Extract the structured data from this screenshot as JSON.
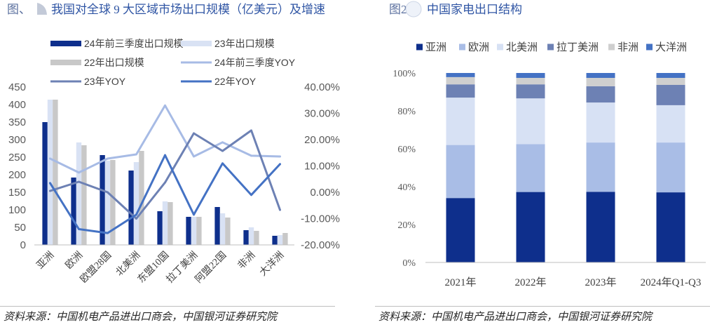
{
  "panels": {
    "left": {
      "figure_label": "图、",
      "source": "资料来源：中国机电产品进出口商会，中国银河证券研究院"
    },
    "right": {
      "figure_label": "图2",
      "source": "资料来源：中国机电产品进出口商会，中国银河证券研究院"
    }
  },
  "icons": {
    "title_decoration": "title-decoration-icon"
  },
  "chart_data": [
    {
      "type": "bar",
      "title": "我国对全球 9 大区域市场出口规模（亿美元）及增速",
      "categories": [
        "亚洲",
        "欧洲",
        "欧盟28国",
        "北美洲",
        "东盟10国",
        "拉丁美洲",
        "阿盟22国",
        "非洲",
        "大洋洲"
      ],
      "series": [
        {
          "name": "24年前三季度出口规模",
          "type": "bar",
          "color": "#0e2f8c",
          "values": [
            350,
            192,
            256,
            212,
            96,
            80,
            108,
            42,
            26
          ]
        },
        {
          "name": "23年出口规模",
          "type": "bar",
          "color": "#d9e2f4",
          "values": [
            414,
            292,
            240,
            236,
            124,
            80,
            90,
            50,
            28
          ]
        },
        {
          "name": "22年出口规模",
          "type": "bar",
          "color": "#c8c8c8",
          "values": [
            414,
            284,
            242,
            268,
            122,
            80,
            78,
            40,
            34
          ]
        },
        {
          "name": "24年前三季度YOY",
          "type": "line",
          "color": "#a7bbe5",
          "values": [
            12.8,
            7.5,
            12.8,
            14.4,
            33.0,
            13.6,
            19.0,
            13.9,
            13.6
          ]
        },
        {
          "name": "23年YOY",
          "type": "line",
          "color": "#6d81b4",
          "values": [
            0.5,
            4.0,
            0.0,
            -10.0,
            3.7,
            22.4,
            15.7,
            23.5,
            -6.7
          ]
        },
        {
          "name": "22年YOY",
          "type": "line",
          "color": "#4472c4",
          "values": [
            3.5,
            -14.0,
            -15.5,
            -8.5,
            14.1,
            -8.5,
            11.0,
            -1.0,
            10.7
          ]
        }
      ],
      "ylim": [
        0,
        450
      ],
      "y_tick_labels": [
        "0",
        "50",
        "100",
        "150",
        "200",
        "250",
        "300",
        "350",
        "400",
        "450"
      ],
      "y2lim": [
        -20,
        40
      ],
      "y2_tick_labels": [
        "-20.00%",
        "-10.00%",
        "0.00%",
        "10.00%",
        "20.00%",
        "30.00%",
        "40.00%"
      ],
      "legend": "top-left",
      "grid": false
    },
    {
      "type": "bar",
      "stacked": true,
      "title": "中国家电出口结构",
      "categories": [
        "2021年",
        "2022年",
        "2023年",
        "2024年Q1-Q3"
      ],
      "series": [
        {
          "name": "亚洲",
          "color": "#0e2f8c",
          "values": [
            34.0,
            37.2,
            37.3,
            37.0
          ]
        },
        {
          "name": "欧洲",
          "color": "#a9bde6",
          "values": [
            28.0,
            25.3,
            26.0,
            26.3
          ]
        },
        {
          "name": "北美洲",
          "color": "#d7e1f4",
          "values": [
            25.0,
            24.1,
            21.1,
            19.7
          ]
        },
        {
          "name": "拉丁美洲",
          "color": "#6d81b4",
          "values": [
            7.0,
            7.4,
            8.6,
            10.7
          ]
        },
        {
          "name": "非洲",
          "color": "#cfcfcf",
          "values": [
            3.8,
            3.4,
            4.4,
            3.7
          ]
        },
        {
          "name": "大洋洲",
          "color": "#4472c4",
          "values": [
            2.2,
            2.6,
            2.6,
            2.6
          ]
        }
      ],
      "ylim": [
        0,
        100
      ],
      "y_tick_labels": [
        "0%",
        "20%",
        "40%",
        "60%",
        "80%",
        "100%"
      ],
      "legend": "top",
      "grid": false
    }
  ]
}
